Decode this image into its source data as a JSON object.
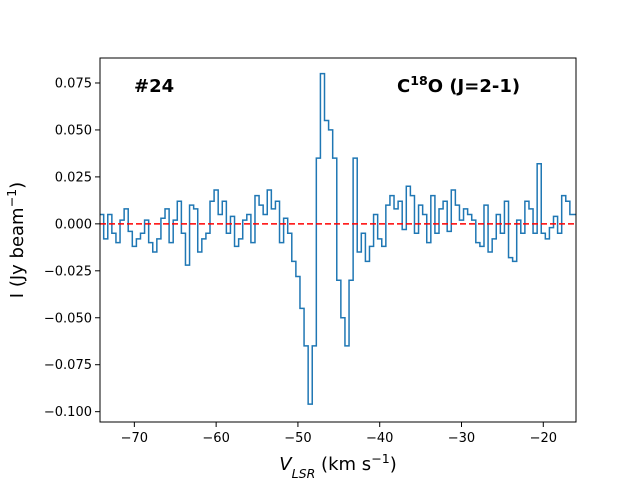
{
  "chart_data": {
    "type": "step",
    "annotations": [
      {
        "segments": [
          {
            "text": "#24"
          }
        ]
      },
      {
        "segments": [
          {
            "text": "C"
          },
          {
            "text": "18",
            "shift": "sup"
          },
          {
            "text": "O (J=2-1)"
          }
        ]
      }
    ],
    "xlabel": [
      {
        "text": "V",
        "style": "italic"
      },
      {
        "text": "LSR",
        "style": "italic",
        "shift": "sub"
      },
      {
        "text": " (km s"
      },
      {
        "text": "−1",
        "shift": "sup"
      },
      {
        "text": ")"
      }
    ],
    "ylabel": [
      {
        "text": "I (Jy beam"
      },
      {
        "text": "−1",
        "shift": "sup"
      },
      {
        "text": ")"
      }
    ],
    "x_start": -74,
    "x_step": 0.5,
    "series": [
      {
        "color": "#1f77b4",
        "values": [
          0.005,
          -0.008,
          0.005,
          -0.005,
          -0.01,
          0.002,
          0.008,
          -0.004,
          -0.012,
          -0.008,
          -0.005,
          0.002,
          -0.01,
          -0.015,
          -0.008,
          0.003,
          0.008,
          -0.01,
          0.002,
          0.012,
          -0.005,
          -0.022,
          0.01,
          0.008,
          -0.015,
          -0.008,
          -0.005,
          0.012,
          0.018,
          0.005,
          0.012,
          -0.005,
          0.004,
          -0.012,
          -0.008,
          0.002,
          0.005,
          -0.01,
          0.015,
          0.01,
          0.005,
          0.018,
          0.008,
          0.012,
          -0.01,
          0.003,
          -0.005,
          -0.02,
          -0.028,
          -0.045,
          -0.065,
          -0.096,
          -0.065,
          0.035,
          0.08,
          0.055,
          0.05,
          0.035,
          -0.03,
          -0.05,
          -0.065,
          -0.03,
          0.035,
          -0.015,
          -0.005,
          -0.02,
          -0.012,
          0.005,
          -0.008,
          -0.012,
          0.01,
          0.015,
          0.008,
          0.012,
          -0.003,
          0.02,
          0.015,
          -0.005,
          0.01,
          0.005,
          -0.01,
          0.015,
          -0.005,
          0.008,
          0.012,
          -0.004,
          0.018,
          0.01,
          0.002,
          0.008,
          0.005,
          0.002,
          -0.01,
          -0.012,
          0.01,
          -0.015,
          -0.008,
          0.005,
          -0.005,
          0.012,
          -0.018,
          -0.02,
          0.002,
          -0.005,
          0.012,
          0.008,
          -0.005,
          0.032,
          -0.005,
          -0.008,
          -0.002,
          0.004,
          -0.005,
          0.015,
          0.012,
          0.005,
          0.005
        ]
      }
    ],
    "hline": {
      "value": 0,
      "color": "#ff0000",
      "dash": true
    },
    "xlim": [
      -74.2,
      -16
    ],
    "ylim": [
      -0.1055,
      0.0883
    ],
    "xticks": [
      {
        "value": -70,
        "label": "−70"
      },
      {
        "value": -60,
        "label": "−60"
      },
      {
        "value": -50,
        "label": "−50"
      },
      {
        "value": -40,
        "label": "−40"
      },
      {
        "value": -30,
        "label": "−30"
      },
      {
        "value": -20,
        "label": "−20"
      }
    ],
    "yticks": [
      {
        "value": -0.1,
        "label": "−0.100"
      },
      {
        "value": -0.075,
        "label": "−0.075"
      },
      {
        "value": -0.05,
        "label": "−0.050"
      },
      {
        "value": -0.025,
        "label": "−0.025"
      },
      {
        "value": 0,
        "label": "0.000"
      },
      {
        "value": 0.025,
        "label": "0.025"
      },
      {
        "value": 0.05,
        "label": "0.050"
      },
      {
        "value": 0.075,
        "label": "0.075"
      }
    ]
  }
}
